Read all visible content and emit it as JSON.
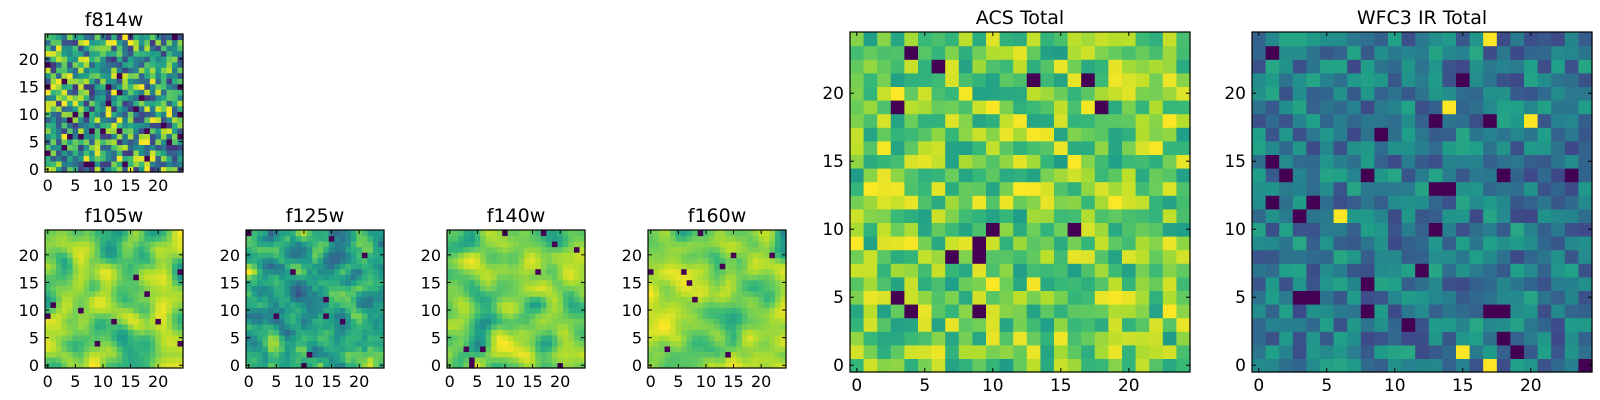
{
  "chart_data": [
    {
      "type": "heatmap",
      "title": "f814w",
      "grid_size": 25,
      "xlim": [
        -0.5,
        24.5
      ],
      "ylim": [
        -0.5,
        24.5
      ],
      "x_ticks": [
        0,
        5,
        10,
        15,
        20
      ],
      "y_ticks": [
        0,
        5,
        10,
        15,
        20
      ],
      "texture": "noisy",
      "seed": 11
    },
    {
      "type": "heatmap",
      "title": "f105w",
      "grid_size": 25,
      "xlim": [
        -0.5,
        24.5
      ],
      "ylim": [
        -0.5,
        24.5
      ],
      "x_ticks": [
        0,
        5,
        10,
        15,
        20
      ],
      "y_ticks": [
        0,
        5,
        10,
        15,
        20
      ],
      "texture": "smooth",
      "seed": 23
    },
    {
      "type": "heatmap",
      "title": "f125w",
      "grid_size": 25,
      "xlim": [
        -0.5,
        24.5
      ],
      "ylim": [
        -0.5,
        24.5
      ],
      "x_ticks": [
        0,
        5,
        10,
        15,
        20
      ],
      "y_ticks": [
        0,
        5,
        10,
        15,
        20
      ],
      "texture": "mixed",
      "seed": 37
    },
    {
      "type": "heatmap",
      "title": "f140w",
      "grid_size": 25,
      "xlim": [
        -0.5,
        24.5
      ],
      "ylim": [
        -0.5,
        24.5
      ],
      "x_ticks": [
        0,
        5,
        10,
        15,
        20
      ],
      "y_ticks": [
        0,
        5,
        10,
        15,
        20
      ],
      "texture": "smooth",
      "seed": 41
    },
    {
      "type": "heatmap",
      "title": "f160w",
      "grid_size": 25,
      "xlim": [
        -0.5,
        24.5
      ],
      "ylim": [
        -0.5,
        24.5
      ],
      "x_ticks": [
        0,
        5,
        10,
        15,
        20
      ],
      "y_ticks": [
        0,
        5,
        10,
        15,
        20
      ],
      "texture": "smooth",
      "seed": 53
    },
    {
      "type": "heatmap",
      "title": "ACS Total",
      "grid_size": 25,
      "xlim": [
        -0.5,
        24.5
      ],
      "ylim": [
        -0.5,
        24.5
      ],
      "x_ticks": [
        0,
        5,
        10,
        15,
        20
      ],
      "y_ticks": [
        0,
        5,
        10,
        15,
        20
      ],
      "texture": "bright",
      "seed": 67
    },
    {
      "type": "heatmap",
      "title": "WFC3 IR Total",
      "grid_size": 25,
      "xlim": [
        -0.5,
        24.5
      ],
      "ylim": [
        -0.5,
        24.5
      ],
      "x_ticks": [
        0,
        5,
        10,
        15,
        20
      ],
      "y_ticks": [
        0,
        5,
        10,
        15,
        20
      ],
      "texture": "dark",
      "seed": 79
    }
  ],
  "colormap": "viridis",
  "colormap_stops": [
    "#440154",
    "#482878",
    "#3e4989",
    "#31688e",
    "#26828e",
    "#1f9e89",
    "#35b779",
    "#6ece58",
    "#b5de2b",
    "#fde725"
  ]
}
